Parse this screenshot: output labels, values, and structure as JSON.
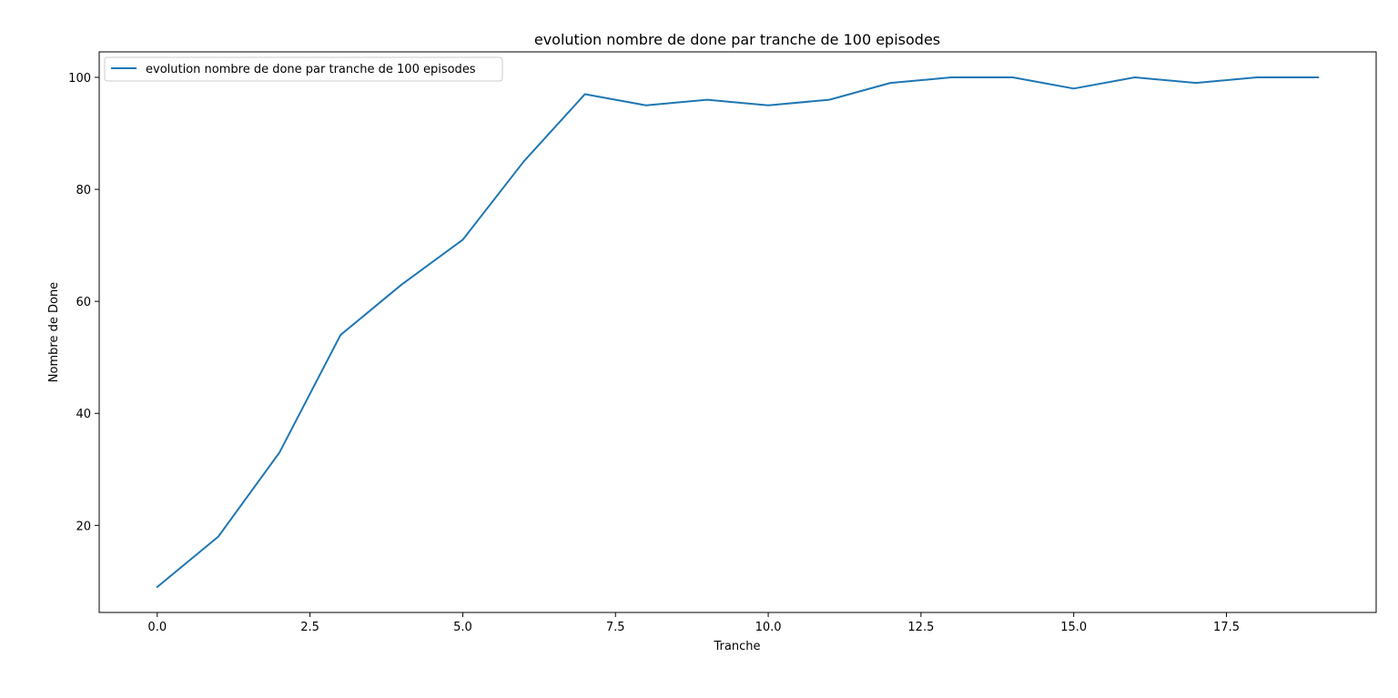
{
  "chart_data": {
    "type": "line",
    "title": "evolution nombre de done par tranche de 100 episodes",
    "xlabel": "Tranche",
    "ylabel": "Nombre de Done",
    "xlim": [
      -0.95,
      19.95
    ],
    "ylim": [
      4.45,
      104.55
    ],
    "xticks": [
      0.0,
      2.5,
      5.0,
      7.5,
      10.0,
      12.5,
      15.0,
      17.5
    ],
    "xtick_labels": [
      "0.0",
      "2.5",
      "5.0",
      "7.5",
      "10.0",
      "12.5",
      "15.0",
      "17.5"
    ],
    "yticks": [
      20,
      40,
      60,
      80,
      100
    ],
    "ytick_labels": [
      "20",
      "40",
      "60",
      "80",
      "100"
    ],
    "grid": false,
    "legend_position": "upper-left",
    "series": [
      {
        "name": "evolution nombre de done par tranche de 100 episodes",
        "color": "#1f77b4",
        "x": [
          0,
          1,
          2,
          3,
          4,
          5,
          6,
          7,
          8,
          9,
          10,
          11,
          12,
          13,
          14,
          15,
          16,
          17,
          18,
          19
        ],
        "y": [
          9,
          18,
          33,
          54,
          63,
          71,
          85,
          97,
          95,
          96,
          95,
          96,
          99,
          100,
          100,
          98,
          100,
          99,
          100,
          100
        ]
      }
    ]
  }
}
